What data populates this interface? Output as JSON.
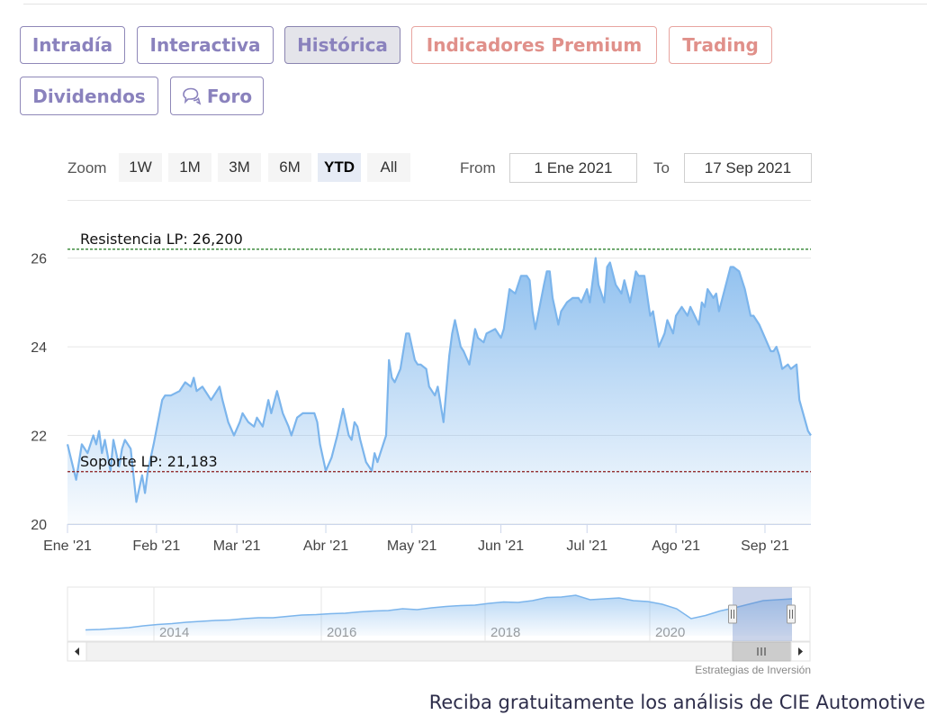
{
  "tabs": {
    "intradia": "Intradía",
    "interactiva": "Interactiva",
    "historica": "Histórica",
    "indicadores": "Indicadores Premium",
    "trading": "Trading",
    "dividendos": "Dividendos",
    "foro": "Foro"
  },
  "colors": {
    "tab": "#8a82bd",
    "premium": "#e0908a",
    "series": "#7cb5ec",
    "resistance": "#1f7a1f",
    "support": "#8b1a1a"
  },
  "zoom": {
    "label": "Zoom",
    "buttons": [
      "1W",
      "1M",
      "3M",
      "6M",
      "YTD",
      "All"
    ],
    "selected": "YTD"
  },
  "range": {
    "from_label": "From",
    "from": "1 Ene 2021",
    "to_label": "To",
    "to": "17 Sep 2021"
  },
  "chart_data": {
    "type": "area",
    "ylim": [
      20,
      26.5
    ],
    "yticks": [
      20,
      22,
      24,
      26
    ],
    "xlim": [
      0,
      259
    ],
    "xticks": [
      {
        "label": "Ene '21",
        "x": 0
      },
      {
        "label": "Feb '21",
        "x": 31
      },
      {
        "label": "Mar '21",
        "x": 59
      },
      {
        "label": "Abr '21",
        "x": 90
      },
      {
        "label": "May '21",
        "x": 120
      },
      {
        "label": "Jun '21",
        "x": 151
      },
      {
        "label": "Jul '21",
        "x": 181
      },
      {
        "label": "Ago '21",
        "x": 212
      },
      {
        "label": "Sep '21",
        "x": 243
      }
    ],
    "annotations": [
      {
        "label": "Resistencia LP: 26,200",
        "value": 26.2,
        "color": "#1f7a1f"
      },
      {
        "label": "Soporte LP: 21,183",
        "value": 21.183,
        "color": "#8b1a1a"
      }
    ],
    "series": [
      {
        "x": [
          0,
          3,
          5,
          7,
          9,
          10,
          11,
          12,
          13,
          15,
          16,
          18,
          19,
          20,
          22,
          24,
          26,
          27,
          28,
          30,
          33,
          34,
          36,
          39,
          41,
          43,
          44,
          45,
          47,
          50,
          53,
          54,
          56,
          58,
          60,
          61,
          63,
          65,
          66,
          68,
          70,
          71,
          73,
          75,
          77,
          78,
          80,
          82,
          83,
          84,
          86,
          87,
          88,
          90,
          92,
          94,
          96,
          98,
          99,
          100,
          101,
          102,
          104,
          106,
          107,
          108,
          109,
          111,
          112,
          113,
          114,
          116,
          118,
          119,
          121,
          122,
          123,
          125,
          126,
          128,
          129,
          131,
          133,
          134,
          135,
          137,
          138,
          140,
          142,
          143,
          145,
          146,
          149,
          151,
          152,
          154,
          156,
          158,
          160,
          161,
          162,
          163,
          166,
          167,
          168,
          169,
          171,
          172,
          174,
          176,
          178,
          179,
          181,
          182,
          184,
          185,
          187,
          188,
          189,
          191,
          192,
          193,
          194,
          196,
          198,
          199,
          201,
          203,
          204,
          206,
          208,
          209,
          211,
          212,
          214,
          216,
          217,
          220,
          221,
          222,
          223,
          225,
          226,
          227,
          229,
          231,
          232,
          234,
          236,
          237,
          238,
          239,
          241,
          243,
          245,
          246,
          247,
          248,
          249,
          251,
          252,
          254,
          255,
          258,
          259
        ],
        "y": [
          21.8,
          21.0,
          21.8,
          21.6,
          22.0,
          21.8,
          22.1,
          21.6,
          21.9,
          21.2,
          21.9,
          21.3,
          21.7,
          21.9,
          21.7,
          20.5,
          21.1,
          20.7,
          21.2,
          21.8,
          22.8,
          22.9,
          22.9,
          23.0,
          23.2,
          23.1,
          23.3,
          23.0,
          23.1,
          22.8,
          23.1,
          22.8,
          22.3,
          22.0,
          22.3,
          22.5,
          22.3,
          22.2,
          22.4,
          22.2,
          22.8,
          22.5,
          23.0,
          22.5,
          22.2,
          22.0,
          22.4,
          22.5,
          22.5,
          22.5,
          22.5,
          22.3,
          21.8,
          21.2,
          21.5,
          22.0,
          22.6,
          22.0,
          21.9,
          22.3,
          22.2,
          21.9,
          21.4,
          21.2,
          21.6,
          21.4,
          21.6,
          22.0,
          23.7,
          23.3,
          23.2,
          23.5,
          24.3,
          24.3,
          23.7,
          23.6,
          23.6,
          23.5,
          23.1,
          22.9,
          23.1,
          22.3,
          23.8,
          24.3,
          24.6,
          24.0,
          23.9,
          23.6,
          24.4,
          24.2,
          24.1,
          24.3,
          24.4,
          24.2,
          24.4,
          25.3,
          25.2,
          25.6,
          25.6,
          25.5,
          24.8,
          24.4,
          25.4,
          25.7,
          25.7,
          25.1,
          24.5,
          24.8,
          25.0,
          25.1,
          25.1,
          25.0,
          25.3,
          25.0,
          26.0,
          25.4,
          25.0,
          25.8,
          25.9,
          25.4,
          25.3,
          25.2,
          25.5,
          25.0,
          25.7,
          25.6,
          25.6,
          24.7,
          24.8,
          24.0,
          24.3,
          24.6,
          24.3,
          24.7,
          24.9,
          24.7,
          24.9,
          24.5,
          25.0,
          24.9,
          25.3,
          25.1,
          25.2,
          24.8,
          25.3,
          25.8,
          25.8,
          25.7,
          25.3,
          25.0,
          24.7,
          24.7,
          24.5,
          24.2,
          23.9,
          23.9,
          24.0,
          23.8,
          23.5,
          23.6,
          23.5,
          23.6,
          22.8,
          22.1,
          22.0
        ],
        "color": "#7cb5ec"
      }
    ],
    "navigator": {
      "xlabels": [
        "2014",
        "2016",
        "2018",
        "2020"
      ],
      "profile": [
        0.13,
        0.14,
        0.16,
        0.18,
        0.22,
        0.25,
        0.27,
        0.3,
        0.32,
        0.34,
        0.35,
        0.38,
        0.4,
        0.4,
        0.43,
        0.46,
        0.47,
        0.49,
        0.5,
        0.53,
        0.55,
        0.56,
        0.6,
        0.58,
        0.62,
        0.65,
        0.67,
        0.68,
        0.72,
        0.75,
        0.74,
        0.78,
        0.85,
        0.86,
        0.9,
        0.8,
        0.82,
        0.84,
        0.78,
        0.76,
        0.7,
        0.6,
        0.38,
        0.45,
        0.55,
        0.62,
        0.7,
        0.78,
        0.8,
        0.82
      ]
    }
  },
  "credit": "Estrategias de Inversión",
  "cta": "Reciba gratuitamente los análisis de CIE Automotive"
}
